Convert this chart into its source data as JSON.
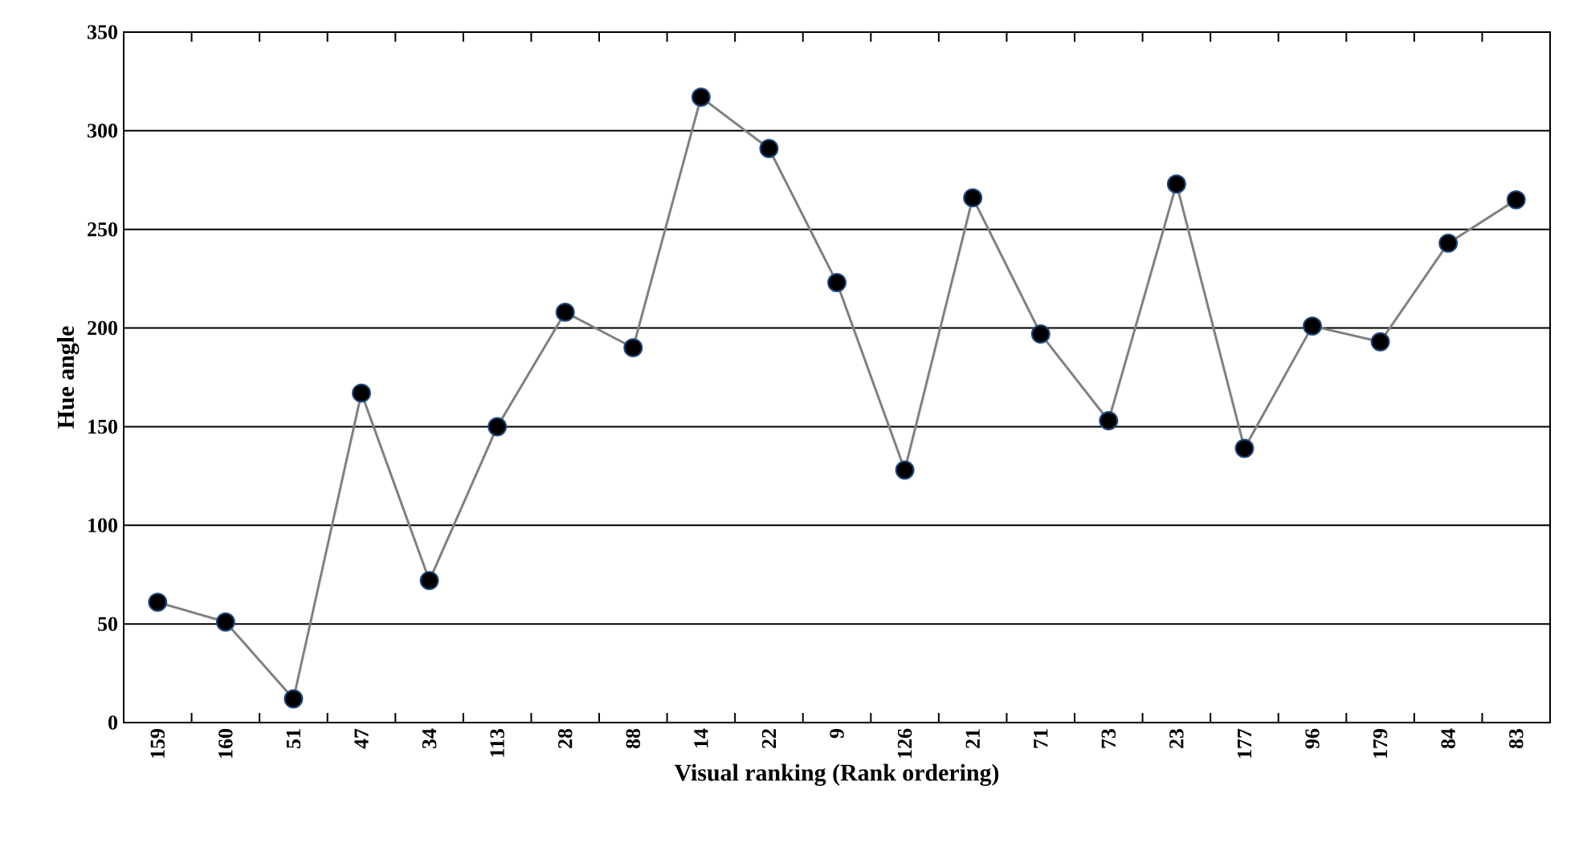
{
  "chart_data": {
    "type": "line",
    "xlabel": "Visual ranking (Rank ordering)",
    "ylabel": "Hue angle",
    "categories": [
      "159",
      "160",
      "51",
      "47",
      "34",
      "113",
      "28",
      "88",
      "14",
      "22",
      "9",
      "126",
      "21",
      "71",
      "73",
      "23",
      "177",
      "96",
      "179",
      "84",
      "83"
    ],
    "values": [
      61,
      51,
      12,
      167,
      72,
      150,
      208,
      190,
      317,
      291,
      223,
      128,
      266,
      197,
      153,
      273,
      139,
      201,
      193,
      243,
      265
    ],
    "color": "#808080",
    "marker": "circle",
    "grid": "y",
    "ylim": [
      0,
      350
    ],
    "yticks": [
      0,
      50,
      100,
      150,
      200,
      250,
      300,
      350
    ]
  }
}
